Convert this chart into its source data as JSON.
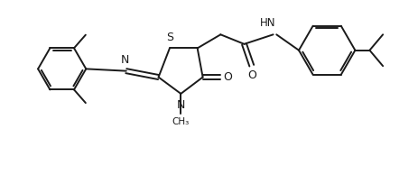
{
  "bg_color": "#ffffff",
  "line_color": "#1a1a1a",
  "fig_width": 4.63,
  "fig_height": 1.94,
  "dpi": 100,
  "lw": 1.4,
  "xlim": [
    0,
    10
  ],
  "ylim": [
    0,
    4.2
  ]
}
